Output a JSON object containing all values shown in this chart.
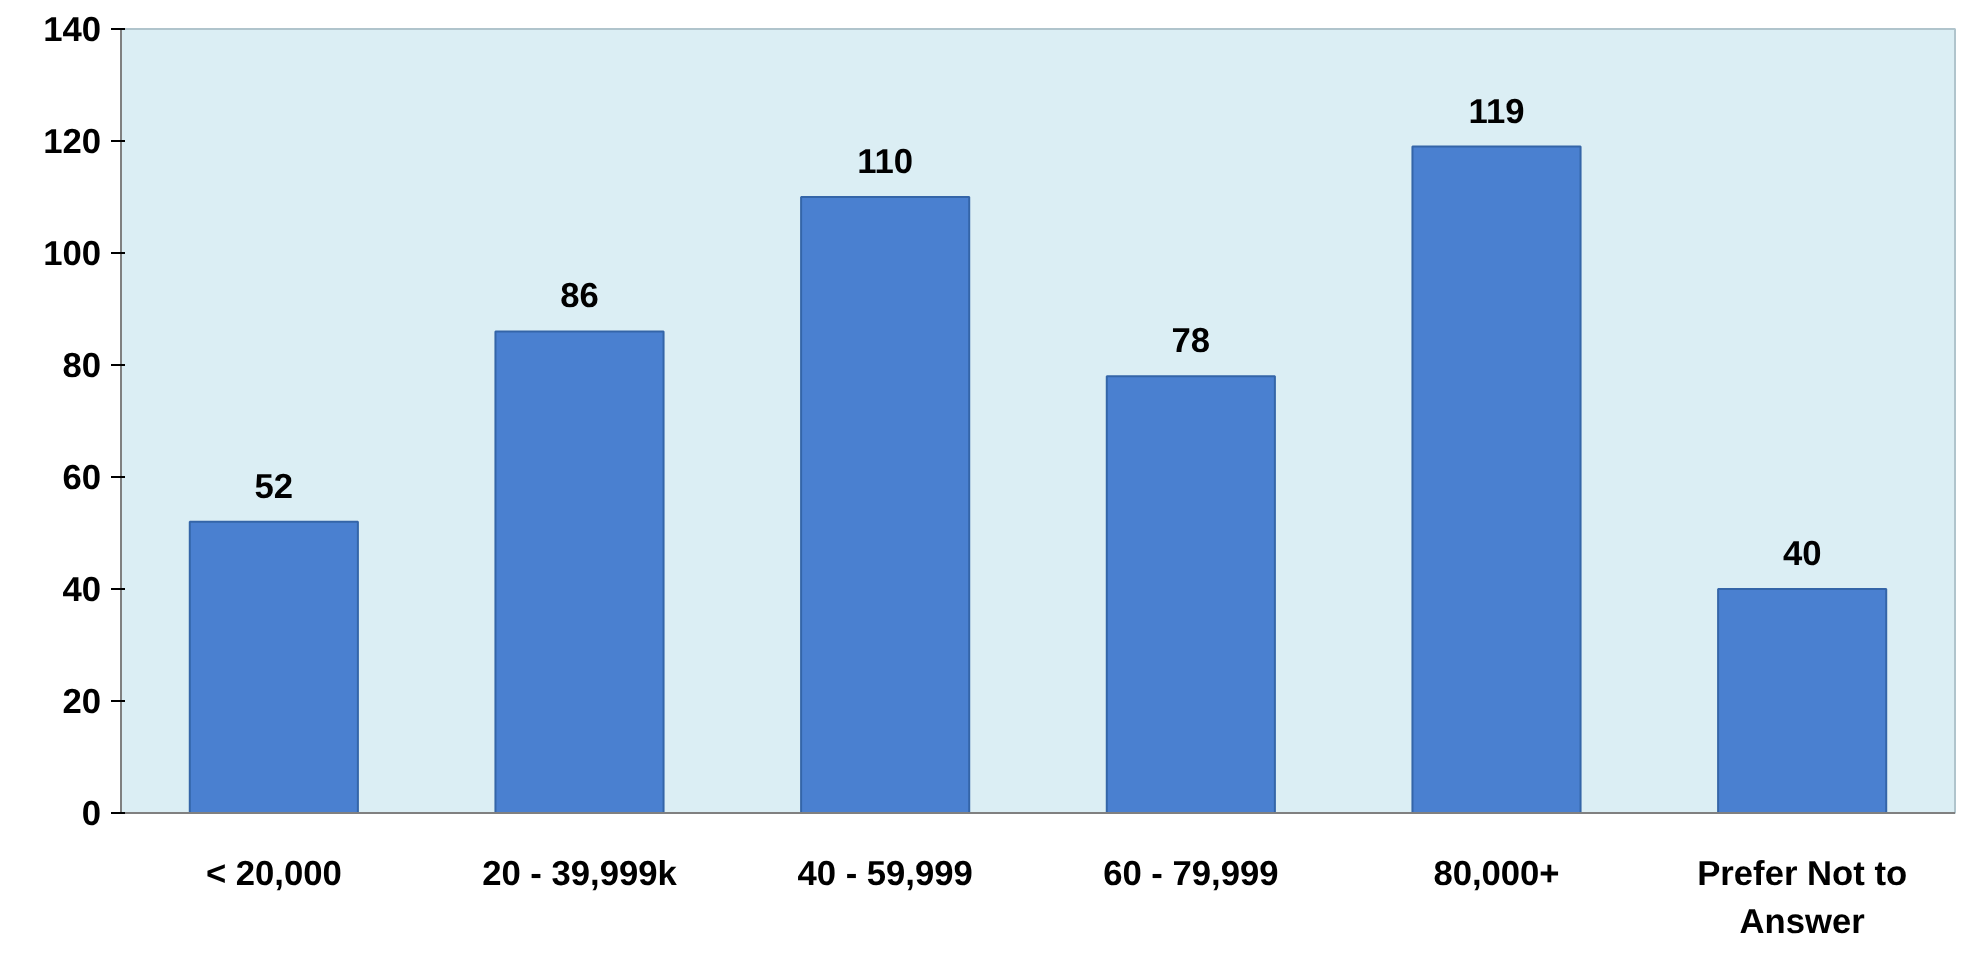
{
  "chart_data": {
    "type": "bar",
    "categories": [
      "< 20,000",
      "20 - 39,999k",
      "40 - 59,999",
      "60 - 79,999",
      "80,000+",
      "Prefer Not to\nAnswer"
    ],
    "values": [
      52,
      86,
      110,
      78,
      119,
      40
    ],
    "color": "#4a80d0",
    "ylim": [
      0,
      140
    ],
    "yticks": [
      0,
      20,
      40,
      60,
      80,
      100,
      120,
      140
    ],
    "data_labels": true,
    "grid": false
  }
}
